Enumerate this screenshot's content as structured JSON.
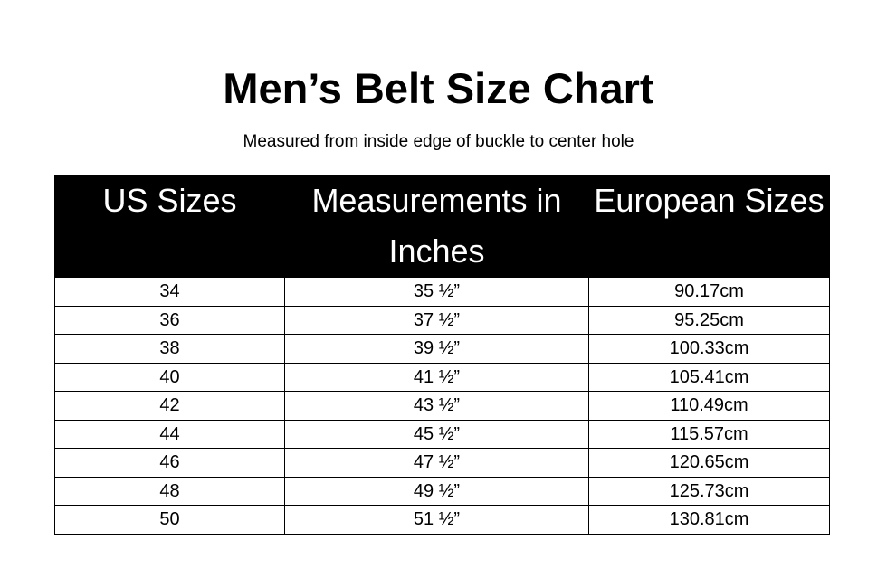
{
  "title": "Men’s Belt Size Chart",
  "subtitle": "Measured from inside edge of buckle to center hole",
  "table": {
    "headers": [
      "US Sizes",
      "Measurements in Inches",
      "European Sizes"
    ],
    "rows": [
      [
        "34",
        "35 ½”",
        "90.17cm"
      ],
      [
        "36",
        "37 ½”",
        "95.25cm"
      ],
      [
        "38",
        "39 ½”",
        "100.33cm"
      ],
      [
        "40",
        "41 ½”",
        "105.41cm"
      ],
      [
        "42",
        "43 ½”",
        "110.49cm"
      ],
      [
        "44",
        "45 ½”",
        "115.57cm"
      ],
      [
        "46",
        "47 ½”",
        "120.65cm"
      ],
      [
        "48",
        "49 ½”",
        "125.73cm"
      ],
      [
        "50",
        "51 ½”",
        "130.81cm"
      ]
    ]
  }
}
